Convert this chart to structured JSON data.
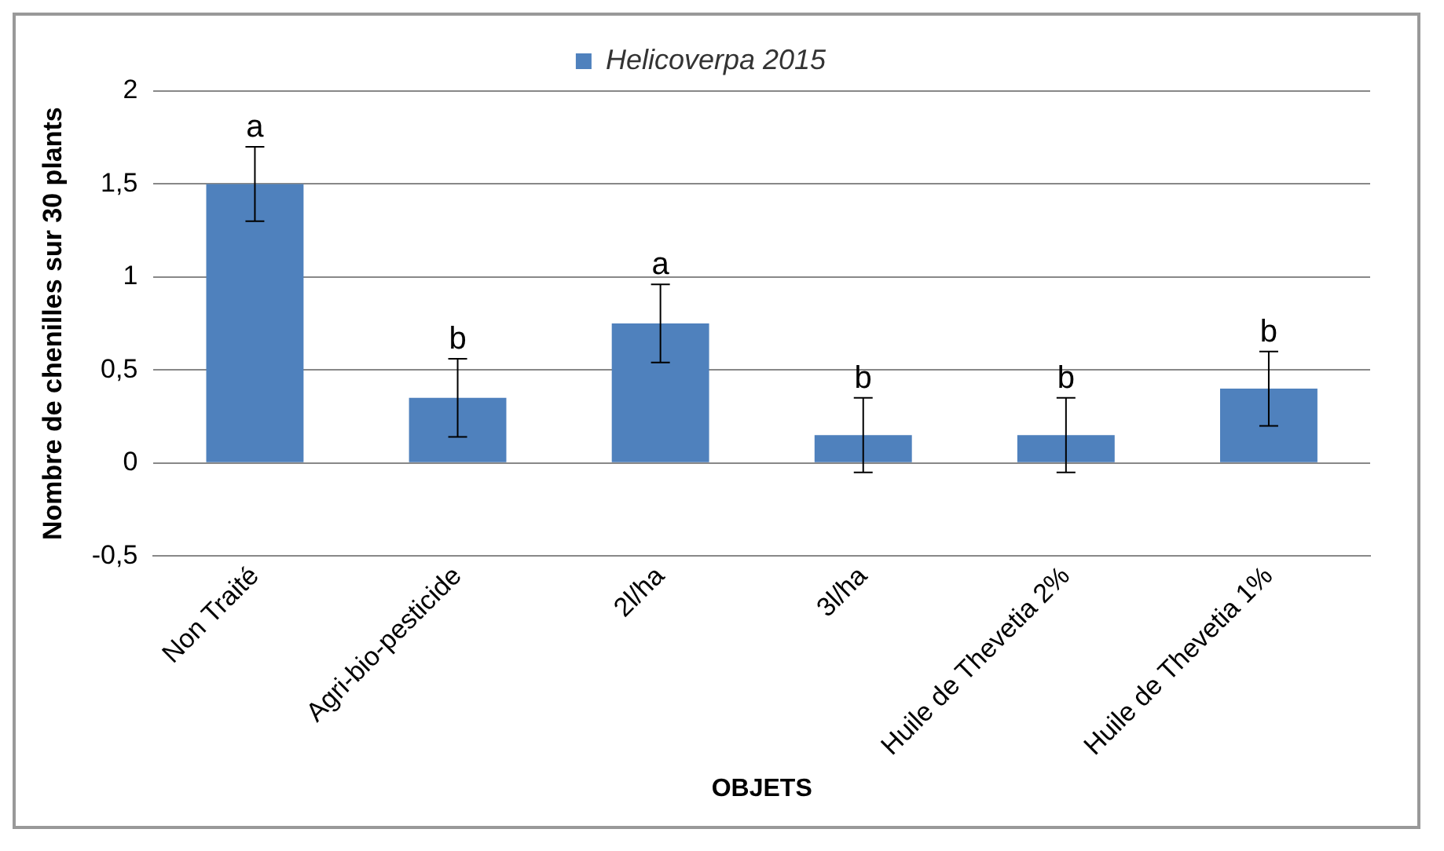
{
  "chart_data": {
    "type": "bar",
    "xlabel": "OBJETS",
    "ylabel": "Nombre de chenilles sur 30 plants",
    "categories": [
      "Non Traité",
      "Agri-bio-pesticide",
      "2l/ha",
      "3l/ha",
      "Huile de Thevetia 2%",
      "Huile de Thevetia 1%"
    ],
    "series": [
      {
        "name": "Helicoverpa 2015",
        "color": "#4f81bd",
        "values": [
          1.5,
          0.35,
          0.75,
          0.15,
          0.15,
          0.4
        ],
        "errors": [
          0.2,
          0.21,
          0.21,
          0.2,
          0.2,
          0.2
        ]
      }
    ],
    "ylim": [
      -0.5,
      2
    ],
    "yticks": [
      {
        "value": -0.5,
        "label": "-0,5"
      },
      0,
      {
        "value": 0.5,
        "label": "0,5"
      },
      1,
      {
        "value": 1.5,
        "label": "1,5"
      },
      2
    ],
    "grid": "y",
    "legend": "top",
    "annotations": [
      {
        "text": "a",
        "x": "Non Traité",
        "y": 1.7
      },
      {
        "text": "b",
        "x": "Agri-bio-pesticide",
        "y": 0.56
      },
      {
        "text": "a",
        "x": "2l/ha",
        "y": 0.96
      },
      {
        "text": "b",
        "x": "3l/ha",
        "y": 0.35
      },
      {
        "text": "b",
        "x": "Huile de Thevetia 2%",
        "y": 0.35
      },
      {
        "text": "b",
        "x": "Huile de Thevetia 1%",
        "y": 0.6
      }
    ]
  }
}
